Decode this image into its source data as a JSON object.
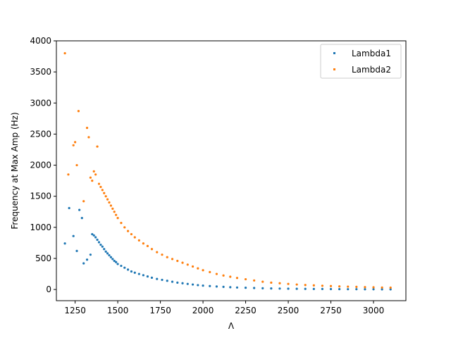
{
  "chart_data": {
    "type": "scatter",
    "title": "",
    "xlabel": "Λ",
    "ylabel": "Frequency at Max Amp (Hz)",
    "xlim": [
      1140,
      3190
    ],
    "ylim": [
      -180,
      4000
    ],
    "xticks": [
      1250,
      1500,
      1750,
      2000,
      2250,
      2500,
      2750,
      3000
    ],
    "yticks": [
      0,
      500,
      1000,
      1500,
      2000,
      2500,
      3000,
      3500,
      4000
    ],
    "grid": false,
    "legend_position": "top-right",
    "series": [
      {
        "name": "Lambda1",
        "color": "#1f77b4",
        "x": [
          1190,
          1215,
          1240,
          1260,
          1275,
          1290,
          1300,
          1320,
          1340,
          1350,
          1360,
          1370,
          1380,
          1390,
          1400,
          1410,
          1420,
          1430,
          1440,
          1450,
          1460,
          1470,
          1480,
          1490,
          1500,
          1520,
          1540,
          1560,
          1580,
          1600,
          1625,
          1650,
          1675,
          1700,
          1730,
          1760,
          1790,
          1820,
          1850,
          1880,
          1910,
          1940,
          1970,
          2000,
          2040,
          2080,
          2120,
          2160,
          2200,
          2250,
          2300,
          2350,
          2400,
          2450,
          2500,
          2550,
          2600,
          2650,
          2700,
          2750,
          2800,
          2850,
          2900,
          2950,
          3000,
          3050,
          3100
        ],
        "y": [
          740,
          1310,
          860,
          620,
          1280,
          1150,
          420,
          480,
          560,
          890,
          870,
          840,
          800,
          760,
          720,
          690,
          650,
          610,
          580,
          550,
          520,
          490,
          460,
          440,
          410,
          380,
          350,
          320,
          290,
          270,
          250,
          230,
          210,
          190,
          170,
          155,
          140,
          125,
          110,
          100,
          90,
          80,
          70,
          62,
          55,
          48,
          42,
          37,
          32,
          28,
          24,
          20,
          17,
          15,
          13,
          11,
          10,
          9,
          8,
          7,
          6,
          5,
          5,
          4,
          4,
          3,
          3
        ]
      },
      {
        "name": "Lambda2",
        "color": "#ff7f0e",
        "x": [
          1190,
          1210,
          1240,
          1250,
          1260,
          1270,
          1300,
          1320,
          1330,
          1340,
          1350,
          1360,
          1370,
          1380,
          1390,
          1400,
          1410,
          1420,
          1430,
          1440,
          1450,
          1460,
          1470,
          1480,
          1490,
          1500,
          1520,
          1540,
          1560,
          1580,
          1600,
          1625,
          1650,
          1675,
          1700,
          1730,
          1760,
          1790,
          1820,
          1850,
          1880,
          1910,
          1940,
          1970,
          2000,
          2040,
          2080,
          2120,
          2160,
          2200,
          2250,
          2300,
          2350,
          2400,
          2450,
          2500,
          2550,
          2600,
          2650,
          2700,
          2750,
          2800,
          2850,
          2900,
          2950,
          3000,
          3050,
          3100
        ],
        "y": [
          3800,
          1850,
          2320,
          2370,
          2000,
          2870,
          1420,
          2600,
          2450,
          1800,
          1750,
          1900,
          1850,
          2300,
          1700,
          1650,
          1600,
          1550,
          1500,
          1450,
          1400,
          1350,
          1300,
          1250,
          1200,
          1150,
          1070,
          1000,
          940,
          890,
          840,
          790,
          740,
          700,
          650,
          600,
          560,
          520,
          490,
          460,
          430,
          400,
          370,
          340,
          310,
          280,
          250,
          225,
          205,
          185,
          165,
          145,
          125,
          110,
          100,
          90,
          80,
          72,
          66,
          60,
          55,
          50,
          46,
          42,
          38,
          35,
          32,
          30
        ]
      }
    ]
  }
}
